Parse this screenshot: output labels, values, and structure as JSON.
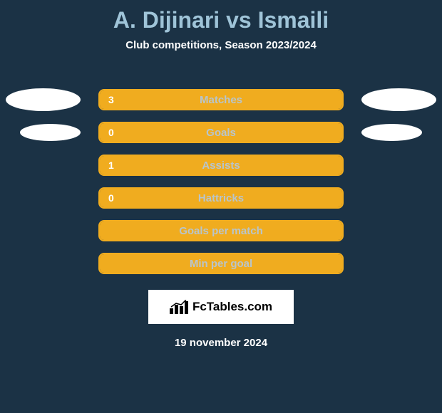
{
  "title": "A. Dijinari vs Ismaili",
  "subtitle": "Club competitions, Season 2023/2024",
  "background_color": "#1b3245",
  "title_color": "#9fc4d8",
  "subtitle_color": "#ffffff",
  "bar_border_color": "#f0ac1f",
  "bar_fill_color": "#f0ac1f",
  "bar_label_color": "#b8c5cc",
  "bar_value_color": "#ffffff",
  "ellipse_color": "#ffffff",
  "stats": [
    {
      "label": "Matches",
      "value": "3",
      "fill_pct": 100,
      "show_left_ellipse": true,
      "show_right_ellipse": true,
      "ellipse_variant": "large"
    },
    {
      "label": "Goals",
      "value": "0",
      "fill_pct": 100,
      "show_left_ellipse": true,
      "show_right_ellipse": true,
      "ellipse_variant": "small"
    },
    {
      "label": "Assists",
      "value": "1",
      "fill_pct": 100,
      "show_left_ellipse": false,
      "show_right_ellipse": false
    },
    {
      "label": "Hattricks",
      "value": "0",
      "fill_pct": 100,
      "show_left_ellipse": false,
      "show_right_ellipse": false
    },
    {
      "label": "Goals per match",
      "value": "",
      "fill_pct": 100,
      "show_left_ellipse": false,
      "show_right_ellipse": false
    },
    {
      "label": "Min per goal",
      "value": "",
      "fill_pct": 100,
      "show_left_ellipse": false,
      "show_right_ellipse": false
    }
  ],
  "brand": {
    "text": "FcTables.com",
    "background": "#ffffff",
    "text_color": "#000000"
  },
  "date_text": "19 november 2024",
  "date_color": "#ffffff"
}
